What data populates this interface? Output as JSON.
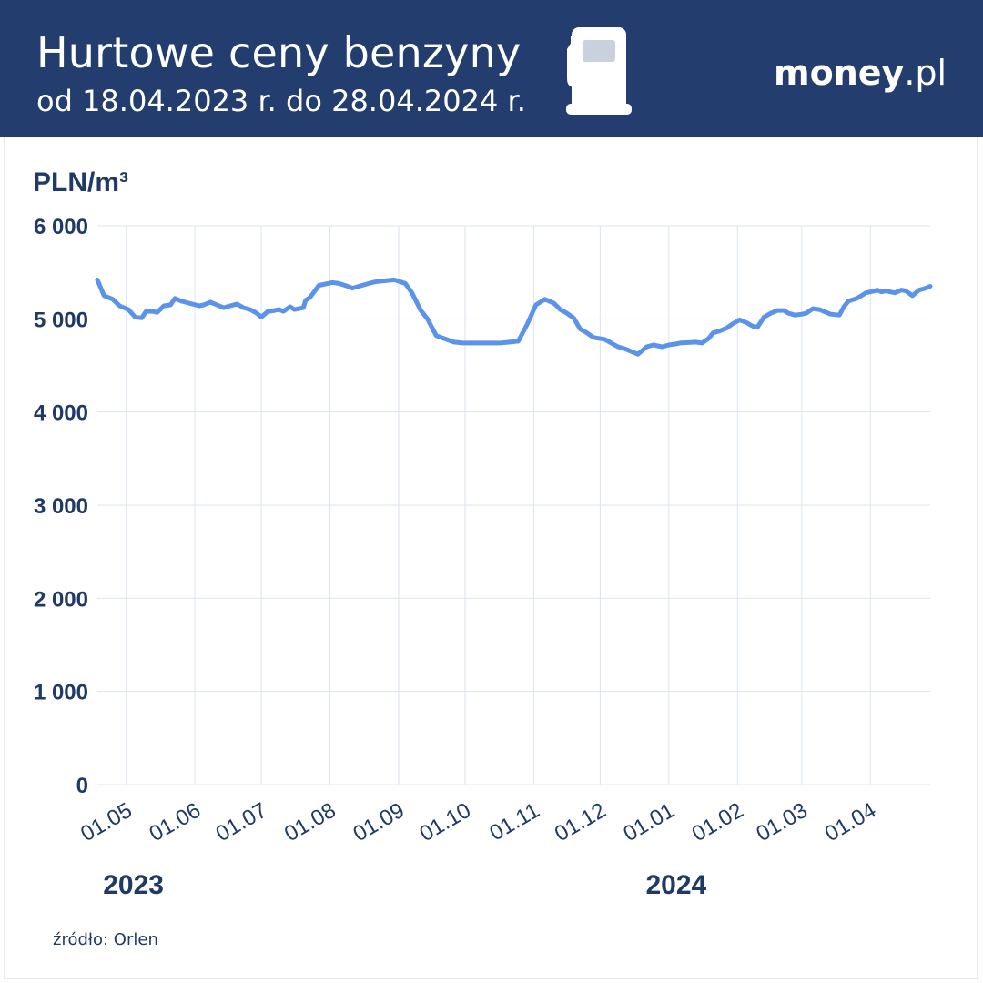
{
  "header": {
    "title": "Hurtowe ceny benzyny",
    "subtitle": "od 18.04.2023 r. do 28.04.2024 r.",
    "icon": "fuel-pump-icon",
    "logo_main": "money",
    "logo_tld": ".pl"
  },
  "colors": {
    "header_bg": "#223d6e",
    "line": "#5b93ea",
    "grid": "#dbe4ef",
    "text": "#1f3a67"
  },
  "chart_data": {
    "type": "line",
    "title": "Hurtowe ceny benzyny",
    "subtitle": "od 18.04.2023 r. do 28.04.2024 r.",
    "ylabel": "PLN/m³",
    "xlabel": "",
    "ylim": [
      0,
      6000
    ],
    "xlim": [
      "2023-04-18",
      "2024-04-28"
    ],
    "yticks": [
      0,
      1000,
      2000,
      3000,
      4000,
      5000,
      6000
    ],
    "ytick_labels": [
      "0",
      "1 000",
      "2 000",
      "3 000",
      "4 000",
      "5 000",
      "6 000"
    ],
    "xticks": [
      "2023-05-01",
      "2023-06-01",
      "2023-07-01",
      "2023-08-01",
      "2023-09-01",
      "2023-10-01",
      "2023-11-01",
      "2023-12-01",
      "2024-01-01",
      "2024-02-01",
      "2024-03-01",
      "2024-04-01"
    ],
    "xtick_labels": [
      "01.05",
      "01.06",
      "01.07",
      "01.08",
      "01.09",
      "01.10",
      "01.11",
      "01.12",
      "01.01",
      "01.02",
      "01.03",
      "01.04"
    ],
    "year_labels": [
      {
        "label": "2023",
        "date": "2023-05-01"
      },
      {
        "label": "2024",
        "date": "2024-01-01"
      }
    ],
    "grid": true,
    "legend": "none",
    "series": [
      {
        "x": [
          "2023-04-18",
          "2023-04-21",
          "2023-04-25",
          "2023-04-28",
          "2023-05-02",
          "2023-05-05",
          "2023-05-08",
          "2023-05-10",
          "2023-05-13",
          "2023-05-15",
          "2023-05-18",
          "2023-05-21",
          "2023-05-23",
          "2023-05-26",
          "2023-05-29",
          "2023-06-03",
          "2023-06-05",
          "2023-06-08",
          "2023-06-11",
          "2023-06-14",
          "2023-06-17",
          "2023-06-20",
          "2023-06-23",
          "2023-06-26",
          "2023-06-29",
          "2023-07-01",
          "2023-07-04",
          "2023-07-07",
          "2023-07-09",
          "2023-07-11",
          "2023-07-14",
          "2023-07-16",
          "2023-07-20",
          "2023-07-21",
          "2023-07-23",
          "2023-07-27",
          "2023-08-02",
          "2023-08-05",
          "2023-08-09",
          "2023-08-11",
          "2023-08-20",
          "2023-08-22",
          "2023-08-26",
          "2023-08-30",
          "2023-09-04",
          "2023-09-07",
          "2023-09-11",
          "2023-09-14",
          "2023-09-18",
          "2023-09-26",
          "2023-09-30",
          "2023-10-17",
          "2023-10-25",
          "2023-10-29",
          "2023-11-02",
          "2023-11-04",
          "2023-11-06",
          "2023-11-10",
          "2023-11-13",
          "2023-11-16",
          "2023-11-19",
          "2023-11-22",
          "2023-11-25",
          "2023-11-28",
          "2023-12-03",
          "2023-12-06",
          "2023-12-09",
          "2023-12-12",
          "2023-12-18",
          "2023-12-22",
          "2023-12-25",
          "2023-12-29",
          "2024-01-01",
          "2024-01-04",
          "2024-01-06",
          "2024-01-13",
          "2024-01-16",
          "2024-01-19",
          "2024-01-21",
          "2024-01-24",
          "2024-01-27",
          "2024-01-30",
          "2024-02-02",
          "2024-02-05",
          "2024-02-08",
          "2024-02-10",
          "2024-02-13",
          "2024-02-16",
          "2024-02-19",
          "2024-02-22",
          "2024-02-24",
          "2024-02-27",
          "2024-03-01",
          "2024-03-03",
          "2024-03-06",
          "2024-03-09",
          "2024-03-14",
          "2024-03-18",
          "2024-03-20",
          "2024-03-22",
          "2024-03-26",
          "2024-03-30",
          "2024-04-03",
          "2024-04-04",
          "2024-04-06",
          "2024-04-08",
          "2024-04-10",
          "2024-04-12",
          "2024-04-15",
          "2024-04-17",
          "2024-04-20",
          "2024-04-23",
          "2024-04-26",
          "2024-04-28"
        ],
        "y": [
          5420,
          5250,
          5210,
          5140,
          5100,
          5020,
          5010,
          5080,
          5080,
          5070,
          5140,
          5150,
          5220,
          5190,
          5170,
          5140,
          5150,
          5180,
          5150,
          5120,
          5140,
          5160,
          5120,
          5100,
          5060,
          5020,
          5080,
          5090,
          5100,
          5080,
          5130,
          5100,
          5120,
          5200,
          5230,
          5360,
          5390,
          5380,
          5350,
          5330,
          5390,
          5400,
          5410,
          5420,
          5380,
          5280,
          5090,
          5000,
          4820,
          4750,
          4740,
          4740,
          4760,
          4940,
          5150,
          5180,
          5210,
          5170,
          5100,
          5060,
          5010,
          4890,
          4850,
          4800,
          4780,
          4740,
          4700,
          4680,
          4620,
          4700,
          4720,
          4700,
          4720,
          4730,
          4740,
          4750,
          4740,
          4790,
          4850,
          4870,
          4900,
          4950,
          4990,
          4960,
          4920,
          4910,
          5020,
          5060,
          5090,
          5090,
          5060,
          5040,
          5050,
          5060,
          5110,
          5100,
          5050,
          5040,
          5130,
          5190,
          5220,
          5280,
          5300,
          5310,
          5290,
          5300,
          5290,
          5280,
          5310,
          5300,
          5250,
          5310,
          5330,
          5350
        ]
      }
    ],
    "source": "źródło: Orlen"
  }
}
